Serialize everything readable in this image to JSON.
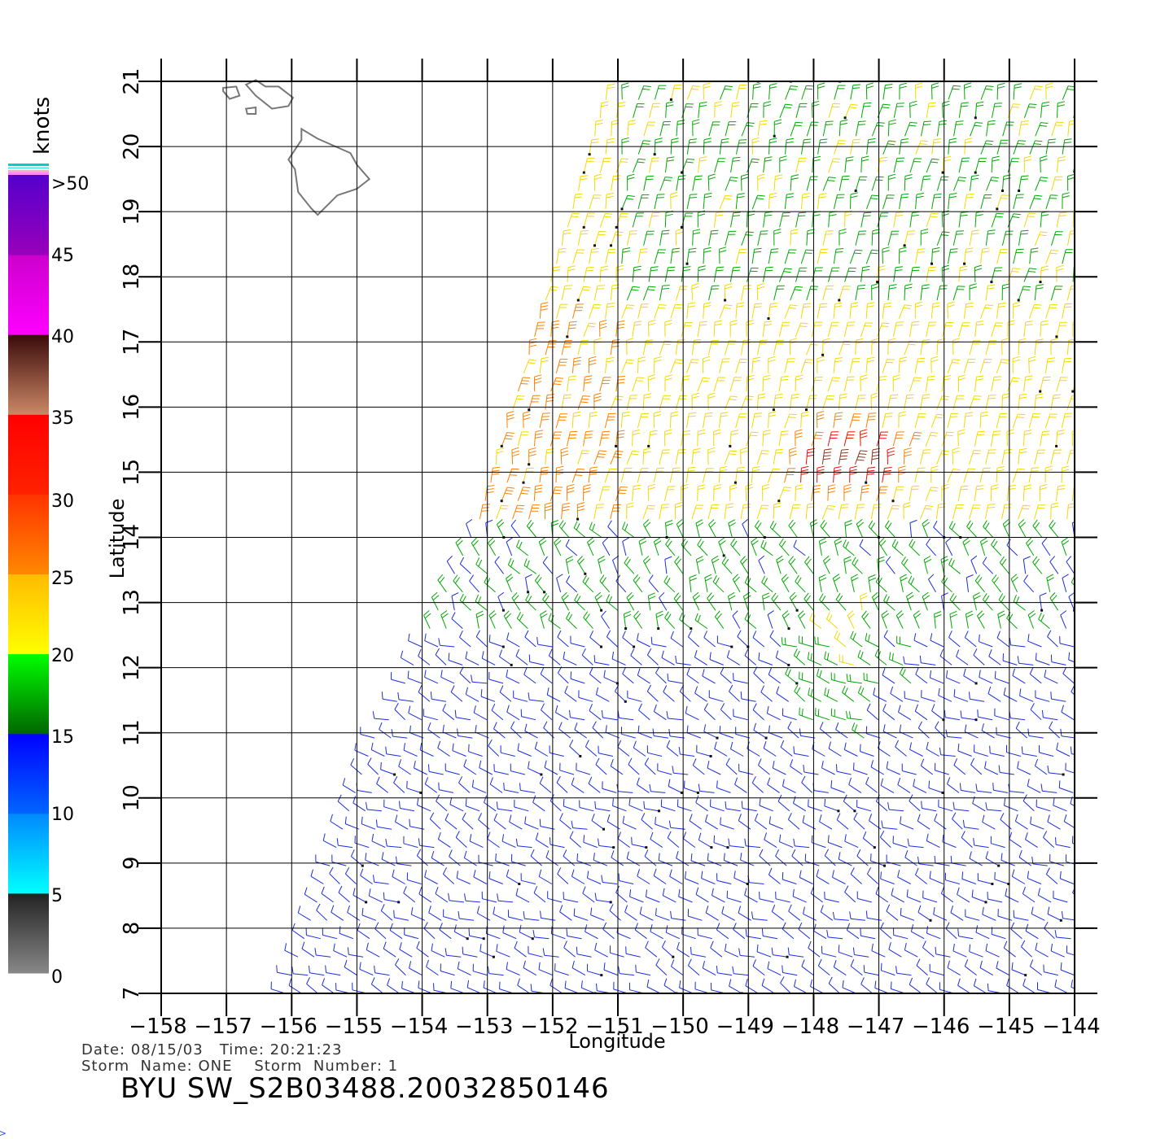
{
  "map": {
    "xlabel": "Longitude",
    "ylabel": "Latitude",
    "lon_range": [
      -158,
      -144
    ],
    "lat_range": [
      7,
      21
    ],
    "lon_ticks": [
      "−158",
      "−157",
      "−156",
      "−155",
      "−154",
      "−153",
      "−152",
      "−151",
      "−150",
      "−149",
      "−148",
      "−147",
      "−146",
      "−145",
      "−144"
    ],
    "lat_ticks": [
      "7",
      "8",
      "9",
      "10",
      "11",
      "12",
      "13",
      "14",
      "15",
      "16",
      "17",
      "18",
      "19",
      "20",
      "21"
    ],
    "grid": true,
    "land_color": "#777777",
    "land_features": [
      "hawaii-island",
      "maui",
      "kahoolawe",
      "lanai"
    ]
  },
  "colorbar": {
    "unit_label": "knots",
    "labels": [
      ">50",
      "45",
      "40",
      "35",
      "30",
      "25",
      "20",
      "15",
      "10",
      "5",
      "0"
    ],
    "bands": [
      {
        "from": 0,
        "to": 5,
        "colors": [
          "#888888",
          "#222222"
        ]
      },
      {
        "from": 5,
        "to": 10,
        "colors": [
          "#00ffff",
          "#0088ff"
        ]
      },
      {
        "from": 10,
        "to": 15,
        "colors": [
          "#0066ff",
          "#0000ff"
        ]
      },
      {
        "from": 15,
        "to": 20,
        "colors": [
          "#006600",
          "#00ff00"
        ]
      },
      {
        "from": 20,
        "to": 25,
        "colors": [
          "#ffff00",
          "#ffbb00"
        ]
      },
      {
        "from": 25,
        "to": 30,
        "colors": [
          "#ff8800",
          "#ff3300"
        ]
      },
      {
        "from": 30,
        "to": 35,
        "colors": [
          "#ff2200",
          "#ff0000"
        ]
      },
      {
        "from": 35,
        "to": 40,
        "colors": [
          "#cc8866",
          "#3a0a0a"
        ]
      },
      {
        "from": 40,
        "to": 45,
        "colors": [
          "#ff00ff",
          "#cc00cc"
        ]
      },
      {
        "from": 45,
        "to": 50,
        "colors": [
          "#9900bb",
          "#5500cc"
        ]
      }
    ]
  },
  "wind_field": {
    "description_colors": {
      "0-5": "#444444",
      "5-10": "#00ccff",
      "10-15": "#0022dd",
      "15-20": "#00aa00",
      "20-25": "#ffdd00",
      "25-30": "#ff7700",
      "30-35": "#ee1100",
      "35-40": "#883322",
      "40-45": "#cc00cc"
    },
    "center_of_max": {
      "lon": -147.5,
      "lat": 15.1
    }
  },
  "footer": {
    "date_line": "Date: 08/15/03   Time: 20:21:23",
    "storm_line": "Storm  Name: ONE    Storm  Number: 1",
    "title": "BYU  SW_S2B03488.20032850146"
  }
}
